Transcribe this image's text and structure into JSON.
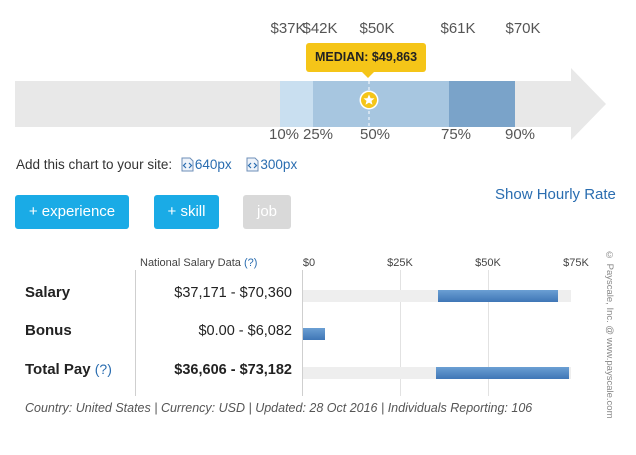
{
  "range_chart": {
    "top_ticks": [
      "$37K",
      "$42K",
      "$50K",
      "$61K",
      "$70K"
    ],
    "bottom_ticks": [
      "10%",
      "25%",
      "50%",
      "75%",
      "90%"
    ],
    "median_label": "MEDIAN: $49,863",
    "colors": {
      "arrow": "#e8e8e8",
      "band_10_25": "#c9dff0",
      "band_25_75": "#a7c6e0",
      "band_75_90": "#7aa3c9",
      "median_tag": "#f5c518"
    }
  },
  "embed": {
    "text": "Add this chart to your site:",
    "link_640": "640px",
    "link_300": "300px"
  },
  "show_hourly": "Show Hourly Rate",
  "filters": {
    "experience": "+ experience",
    "skill": "+ skill",
    "job": "job"
  },
  "table": {
    "header": "National Salary Data",
    "help": "(?)",
    "axis": [
      "$0",
      "$25K",
      "$50K",
      "$75K"
    ],
    "rows": [
      {
        "label": "Salary",
        "help": "",
        "value": "$37,171 - $70,360"
      },
      {
        "label": "Bonus",
        "help": "",
        "value": "$0.00 - $6,082"
      },
      {
        "label": "Total Pay",
        "help": "(?)",
        "value": "$36,606 - $73,182"
      }
    ],
    "footer": "Country: United States | Currency: USD | Updated: 28 Oct 2016 | Individuals Reporting: 106",
    "watermark": "© Payscale, Inc. @ www.payscale.com"
  }
}
